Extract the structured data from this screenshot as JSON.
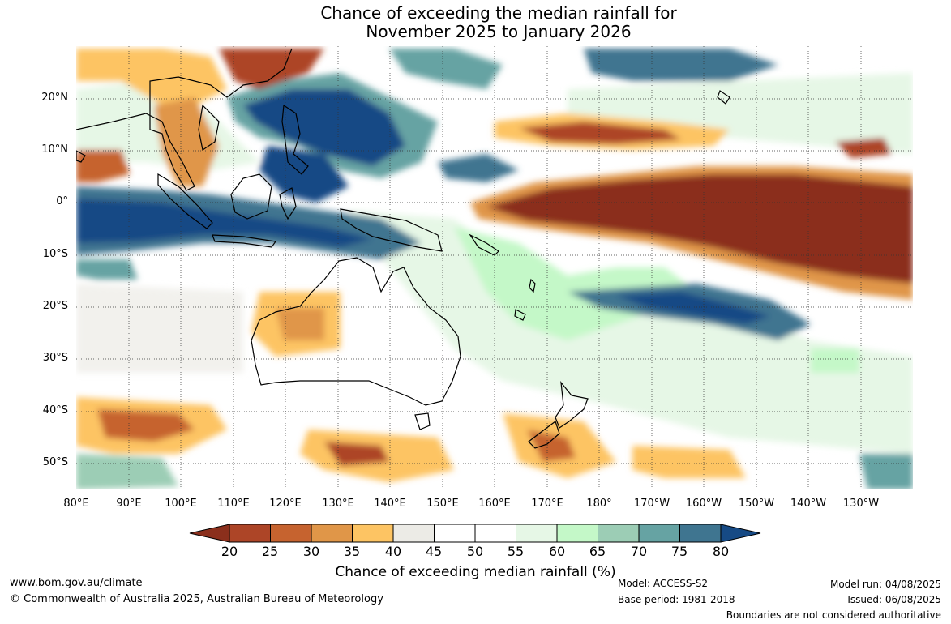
{
  "title": {
    "line1": "Chance of exceeding the median rainfall for",
    "line2": "November 2025 to January 2026"
  },
  "map": {
    "lat_labels": [
      "20°N",
      "10°N",
      "0°",
      "10°S",
      "20°S",
      "30°S",
      "40°S",
      "50°S"
    ],
    "lon_labels": [
      "80°E",
      "90°E",
      "100°E",
      "110°E",
      "120°E",
      "130°E",
      "140°E",
      "150°E",
      "160°E",
      "170°E",
      "180°",
      "170°W",
      "160°W",
      "150°W",
      "140°W",
      "130°W"
    ]
  },
  "colorbar": {
    "ticks": [
      "20",
      "25",
      "30",
      "35",
      "40",
      "45",
      "50",
      "55",
      "60",
      "65",
      "70",
      "75",
      "80"
    ],
    "colors": [
      "#8b2f1c",
      "#ad4527",
      "#c6632f",
      "#e09648",
      "#fdc463",
      "#ecebe6",
      "#ffffff",
      "#ffffff",
      "#e6f7e6",
      "#c4f8c8",
      "#9ccdb5",
      "#66a3a3",
      "#3f7590",
      "#164a85"
    ],
    "label": "Chance of exceeding median rainfall (%)"
  },
  "footer": {
    "website": "www.bom.gov.au/climate",
    "copyright": "© Commonwealth of Australia 2025, Australian Bureau of Meteorology",
    "model": "Model: ACCESS-S2",
    "base_period": "Base period: 1981-2018",
    "model_run": "Model run: 04/08/2025",
    "issued": "Issued: 06/08/2025",
    "disclaimer": "Boundaries are not considered authoritative"
  }
}
